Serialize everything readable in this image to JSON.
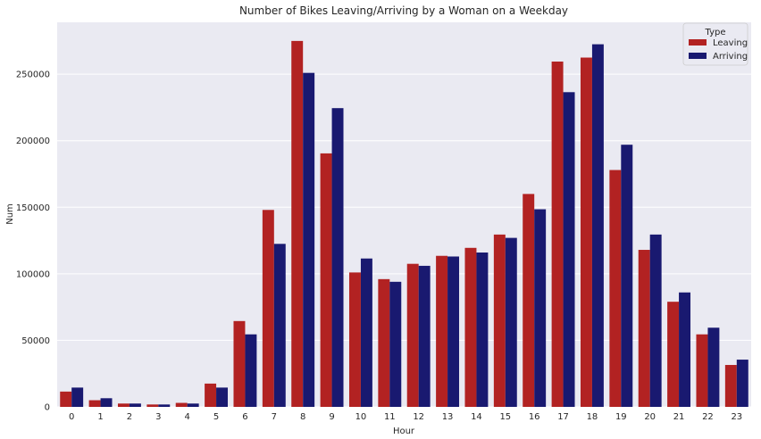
{
  "chart_data": {
    "type": "bar",
    "title": "Number of Bikes Leaving/Arriving by a Woman on a Weekday",
    "xlabel": "Hour",
    "ylabel": "Num",
    "categories": [
      "0",
      "1",
      "2",
      "3",
      "4",
      "5",
      "6",
      "7",
      "8",
      "9",
      "10",
      "11",
      "12",
      "13",
      "14",
      "15",
      "16",
      "17",
      "18",
      "19",
      "20",
      "21",
      "22",
      "23"
    ],
    "series": [
      {
        "name": "Leaving",
        "color": "#b22222",
        "values": [
          11500,
          5000,
          2500,
          1800,
          3000,
          17500,
          64500,
          148000,
          275000,
          190500,
          101000,
          96000,
          107500,
          113500,
          119500,
          129500,
          160000,
          259500,
          262500,
          178000,
          118000,
          79000,
          54500,
          31500
        ]
      },
      {
        "name": "Arriving",
        "color": "#191970",
        "values": [
          14500,
          6500,
          2500,
          1800,
          2500,
          14500,
          54500,
          122500,
          251000,
          224500,
          111500,
          94000,
          106000,
          113000,
          116000,
          127000,
          148500,
          236500,
          272500,
          197000,
          129500,
          86000,
          59500,
          35500
        ]
      }
    ],
    "y_ticks": [
      0,
      50000,
      100000,
      150000,
      200000,
      250000
    ],
    "ylim": [
      0,
      289000
    ],
    "grid": true,
    "legend": {
      "title": "Type",
      "position": "top-right"
    },
    "background_color": "#eaeaf2"
  }
}
